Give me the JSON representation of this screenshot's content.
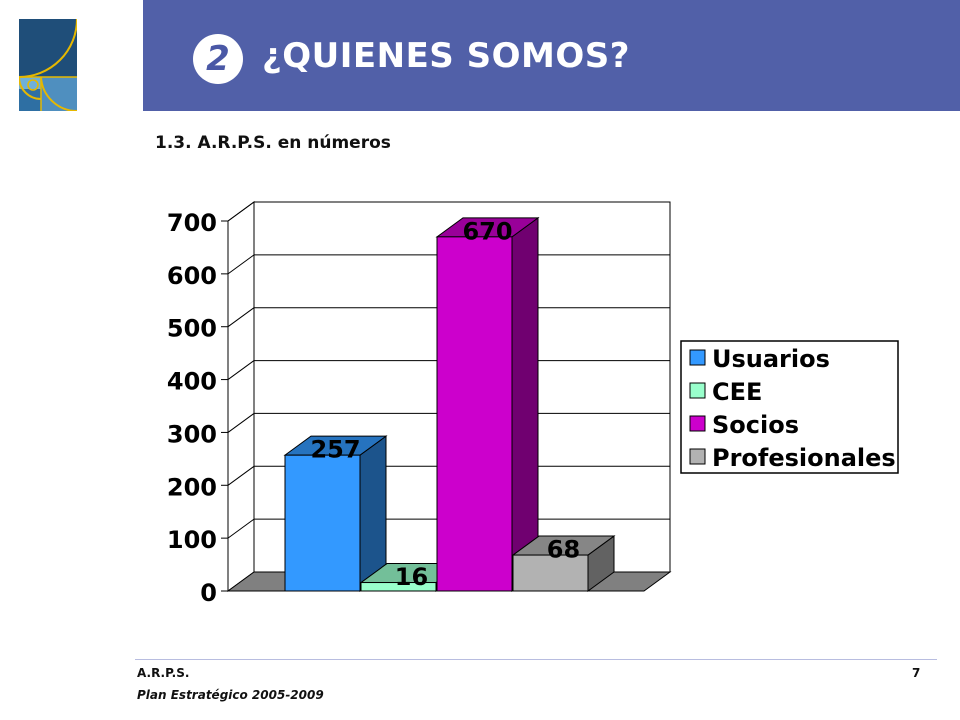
{
  "header": {
    "section_number": "2",
    "title": "¿QUIENES SOMOS?",
    "colors": {
      "band": "#5160a8",
      "text": "#ffffff"
    }
  },
  "subtitle": "1.3. A.R.P.S. en números",
  "footer": {
    "org": "A.R.P.S.",
    "plan": "Plan Estratégico 2005-2009",
    "page_number": "7"
  },
  "chart_data": {
    "type": "bar",
    "categories": [
      "Usuarios",
      "CEE",
      "Socios",
      "Profesionales"
    ],
    "values": [
      257,
      16,
      670,
      68
    ],
    "ylim": [
      0,
      700
    ],
    "yticks": [
      "0",
      "100",
      "200",
      "300",
      "400",
      "500",
      "600",
      "700"
    ],
    "data_labels": [
      "257",
      "16",
      "670",
      "68"
    ],
    "legend": {
      "position": "right",
      "entries": [
        "Usuarios",
        "CEE",
        "Socios",
        "Profesionales"
      ]
    },
    "colors": [
      "#3399ff",
      "#99ffcc",
      "#cc00cc",
      "#b2b2b2"
    ],
    "grid": true,
    "three_d": true
  }
}
